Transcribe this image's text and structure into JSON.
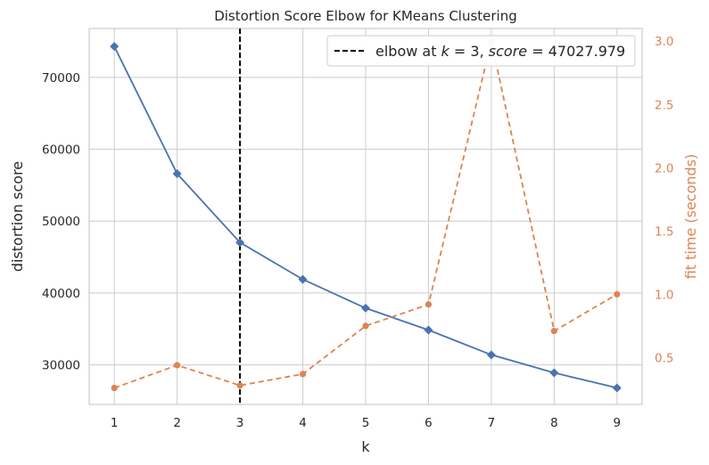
{
  "chart_data": {
    "type": "line",
    "title": "Distortion Score Elbow for KMeans Clustering",
    "xlabel": "k",
    "ylabel": "distortion score",
    "y2label": "fit time (seconds)",
    "x": [
      1,
      2,
      3,
      4,
      5,
      6,
      7,
      8,
      9
    ],
    "xlim": [
      0.6,
      9.4
    ],
    "ylim": [
      24500,
      76800
    ],
    "y2lim": [
      0.13,
      3.1
    ],
    "yticks": [
      30000,
      40000,
      50000,
      60000,
      70000
    ],
    "y2ticks": [
      0.5,
      1.0,
      1.5,
      2.0,
      2.5,
      3.0
    ],
    "y2tick_labels": [
      "0.5",
      "1.0",
      "1.5",
      "2.0",
      "2.5",
      "3.0"
    ],
    "grid": true,
    "legend_position": "top-right",
    "series": [
      {
        "axis": "left",
        "color": "#4c72b0",
        "marker": "diamond",
        "linestyle": "solid",
        "values": [
          74300,
          56600,
          47028,
          41900,
          37900,
          34850,
          31400,
          28900,
          26800
        ]
      },
      {
        "axis": "right",
        "color": "#dd8452",
        "marker": "circle",
        "linestyle": "dashed",
        "values": [
          0.26,
          0.44,
          0.28,
          0.37,
          0.75,
          0.92,
          3.0,
          0.71,
          1.0
        ]
      }
    ],
    "annotations": [
      {
        "type": "vline",
        "x": 3,
        "color": "#000000",
        "linestyle": "dashed",
        "legend_prefix": "elbow at ",
        "legend_k": "k",
        "legend_eq1": " = 3, ",
        "legend_score": "score",
        "legend_eq2": " = 47027.979"
      }
    ]
  }
}
